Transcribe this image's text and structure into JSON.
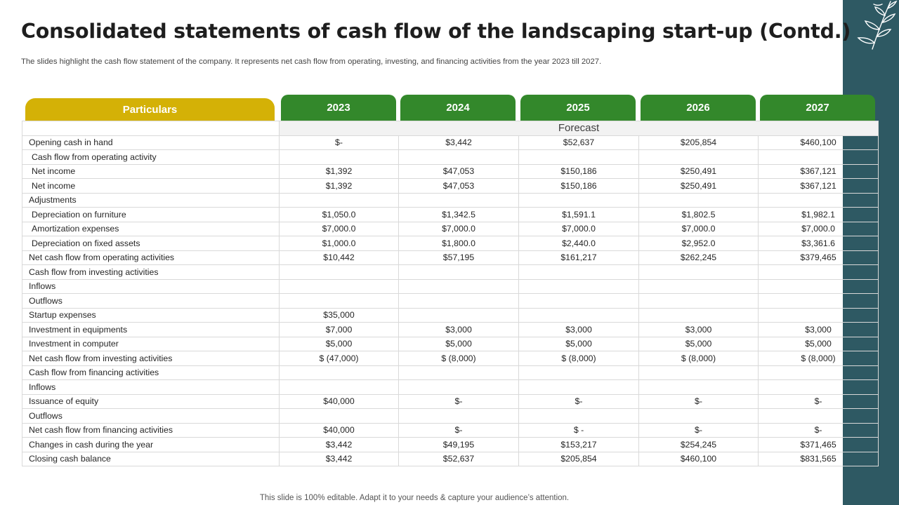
{
  "title": "Consolidated statements of cash flow of the landscaping start-up (Contd.)",
  "subtitle": "The slides highlight the cash flow statement of the company. It represents net cash flow from operating, investing, and financing activities from the year 2023 till 2027.",
  "table": {
    "particulars_label": "Particulars",
    "years": [
      "2023",
      "2024",
      "2025",
      "2026",
      "2027"
    ],
    "forecast_label": "Forecast",
    "rows": [
      {
        "label": "Opening cash in hand",
        "indent": false,
        "values": [
          "$-",
          "$3,442",
          "$52,637",
          "$205,854",
          "$460,100"
        ]
      },
      {
        "label": "Cash flow from operating activity",
        "indent": true,
        "values": [
          "",
          "",
          "",
          "",
          ""
        ]
      },
      {
        "label": "Net income",
        "indent": true,
        "values": [
          "$1,392",
          "$47,053",
          "$150,186",
          "$250,491",
          "$367,121"
        ]
      },
      {
        "label": "Net income",
        "indent": true,
        "values": [
          "$1,392",
          "$47,053",
          "$150,186",
          "$250,491",
          "$367,121"
        ]
      },
      {
        "label": "Adjustments",
        "indent": false,
        "values": [
          "",
          "",
          "",
          "",
          ""
        ]
      },
      {
        "label": "Depreciation  on furniture",
        "indent": true,
        "values": [
          "$1,050.0",
          "$1,342.5",
          "$1,591.1",
          "$1,802.5",
          "$1,982.1"
        ]
      },
      {
        "label": "Amortization expenses",
        "indent": true,
        "values": [
          "$7,000.0",
          "$7,000.0",
          "$7,000.0",
          "$7,000.0",
          "$7,000.0"
        ]
      },
      {
        "label": "Depreciation  on fixed assets",
        "indent": true,
        "values": [
          "$1,000.0",
          "$1,800.0",
          "$2,440.0",
          "$2,952.0",
          "$3,361.6"
        ]
      },
      {
        "label": "Net cash flow from operating activities",
        "indent": false,
        "values": [
          "$10,442",
          "$57,195",
          "$161,217",
          "$262,245",
          "$379,465"
        ]
      },
      {
        "label": "Cash flow from investing activities",
        "indent": false,
        "values": [
          "",
          "",
          "",
          "",
          ""
        ]
      },
      {
        "label": "Inflows",
        "indent": false,
        "values": [
          "",
          "",
          "",
          "",
          ""
        ]
      },
      {
        "label": "Outflows",
        "indent": false,
        "values": [
          "",
          "",
          "",
          "",
          ""
        ]
      },
      {
        "label": "Startup expenses",
        "indent": false,
        "values": [
          "$35,000",
          "",
          "",
          "",
          ""
        ]
      },
      {
        "label": "Investment  in equipments",
        "indent": false,
        "values": [
          "$7,000",
          "$3,000",
          "$3,000",
          "$3,000",
          "$3,000"
        ]
      },
      {
        "label": "Investment  in computer",
        "indent": false,
        "values": [
          "$5,000",
          "$5,000",
          "$5,000",
          "$5,000",
          "$5,000"
        ]
      },
      {
        "label": "Net cash flow from investing activities",
        "indent": false,
        "values": [
          "$ (47,000)",
          "$ (8,000)",
          "$ (8,000)",
          "$ (8,000)",
          "$ (8,000)"
        ]
      },
      {
        "label": "Cash flow from financing activities",
        "indent": false,
        "values": [
          "",
          "",
          "",
          "",
          ""
        ]
      },
      {
        "label": "Inflows",
        "indent": false,
        "values": [
          "",
          "",
          "",
          "",
          ""
        ]
      },
      {
        "label": "Issuance  of equity",
        "indent": false,
        "values": [
          "$40,000",
          "$-",
          "$-",
          "$-",
          "$-"
        ]
      },
      {
        "label": "Outflows",
        "indent": false,
        "values": [
          "",
          "",
          "",
          "",
          ""
        ]
      },
      {
        "label": "Net cash flow from financing activities",
        "indent": false,
        "values": [
          "$40,000",
          "$-",
          "$ -",
          "$-",
          "$-"
        ]
      },
      {
        "label": "Changes in cash during the year",
        "indent": false,
        "values": [
          "$3,442",
          "$49,195",
          "$153,217",
          "$254,245",
          "$371,465"
        ]
      },
      {
        "label": "Closing cash balance",
        "indent": false,
        "values": [
          "$3,442",
          "$52,637",
          "$205,854",
          "$460,100",
          "$831,565"
        ]
      }
    ]
  },
  "footer": "This slide is 100% editable. Adapt it to your needs & capture your audience’s attention.",
  "colors": {
    "particulars_header": "#d4b106",
    "year_header": "#33882b",
    "side_bar": "#2e5963"
  },
  "icons": {
    "corner_decoration": "leaf-branch-icon"
  }
}
